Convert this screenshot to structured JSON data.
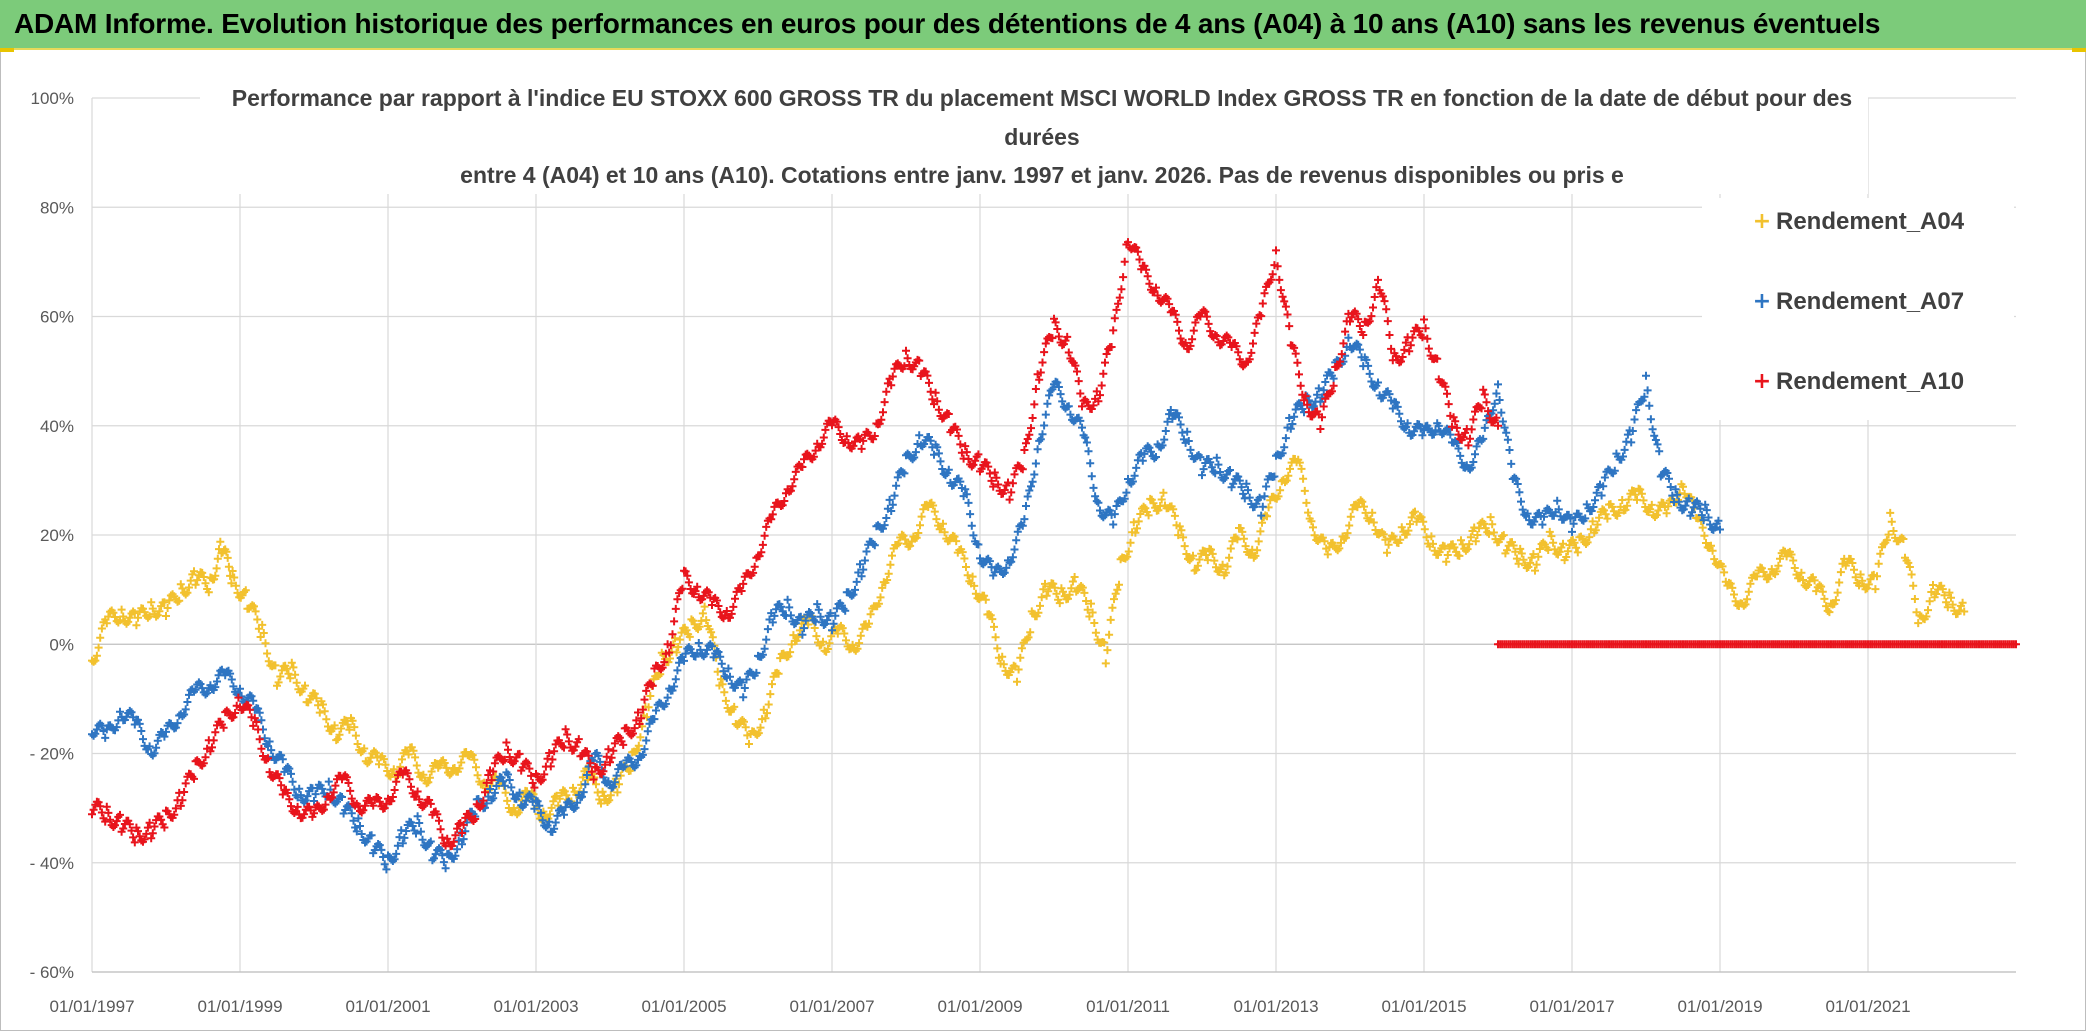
{
  "header": {
    "title": "ADAM Informe. Evolution historique des performances en euros pour des détentions de 4 ans (A04) à 10 ans (A10) sans les revenus éventuels"
  },
  "chart_data": {
    "type": "scatter",
    "title_lines": [
      "Performance par rapport à l'indice EU STOXX 600 GROSS TR  du placement MSCI WORLD Index GROSS TR en fonction de la date de début pour des",
      "durées",
      "entre 4 (A04) et 10 ans (A10). Cotations entre janv. 1997 et janv. 2026. Pas de revenus disponibles ou pris e"
    ],
    "x_axis": {
      "range": [
        1997.0,
        2023.0
      ],
      "ticks": [
        1997,
        1999,
        2001,
        2003,
        2005,
        2007,
        2009,
        2011,
        2013,
        2015,
        2017,
        2019,
        2021
      ],
      "tick_labels": [
        "01/01/1997",
        "01/01/1999",
        "01/01/2001",
        "01/01/2003",
        "01/01/2005",
        "01/01/2007",
        "01/01/2009",
        "01/01/2011",
        "01/01/2013",
        "01/01/2015",
        "01/01/2017",
        "01/01/2019",
        "01/01/2021"
      ]
    },
    "y_axis": {
      "range": [
        -60,
        100
      ],
      "ticks": [
        -60,
        -40,
        -20,
        0,
        20,
        40,
        60,
        80,
        100
      ],
      "tick_labels": [
        "- 60%",
        "- 40%",
        "- 20%",
        "0%",
        "20%",
        "40%",
        "60%",
        "80%",
        "100%"
      ]
    },
    "grid": true,
    "legend_position": "right",
    "series": [
      {
        "name": "Rendement_A04",
        "color": "#f2c12e",
        "x": [
          1997.0,
          1997.2,
          1997.4,
          1997.6,
          1997.8,
          1998.0,
          1998.2,
          1998.4,
          1998.6,
          1998.75,
          1998.9,
          1999.1,
          1999.3,
          1999.5,
          1999.7,
          1999.9,
          2000.1,
          2000.3,
          2000.5,
          2000.7,
          2000.9,
          2001.1,
          2001.3,
          2001.5,
          2001.7,
          2001.9,
          2002.1,
          2002.3,
          2002.5,
          2002.7,
          2002.9,
          2003.1,
          2003.3,
          2003.5,
          2003.7,
          2003.9,
          2004.1,
          2004.3,
          2004.5,
          2004.7,
          2004.9,
          2005.1,
          2005.3,
          2005.5,
          2005.7,
          2005.9,
          2006.1,
          2006.3,
          2006.5,
          2006.7,
          2006.9,
          2007.1,
          2007.3,
          2007.5,
          2007.7,
          2007.9,
          2008.1,
          2008.3,
          2008.5,
          2008.7,
          2008.9,
          2009.1,
          2009.3,
          2009.5,
          2009.7,
          2009.9,
          2010.1,
          2010.3,
          2010.5,
          2010.7,
          2010.9,
          2011.1,
          2011.3,
          2011.5,
          2011.7,
          2011.9,
          2012.1,
          2012.3,
          2012.5,
          2012.7,
          2012.9,
          2013.1,
          2013.3,
          2013.5,
          2013.7,
          2013.9,
          2014.1,
          2014.3,
          2014.5,
          2014.7,
          2014.9,
          2015.1,
          2015.3,
          2015.5,
          2015.7,
          2015.9,
          2016.1,
          2016.3,
          2016.5,
          2016.7,
          2016.9,
          2017.1,
          2017.3,
          2017.5,
          2017.7,
          2017.9,
          2018.1,
          2018.3,
          2018.5,
          2018.7,
          2018.9,
          2019.1,
          2019.3,
          2019.5,
          2019.7,
          2019.9,
          2020.1,
          2020.3,
          2020.5,
          2020.7,
          2020.9,
          2021.1,
          2021.3,
          2021.5,
          2021.7,
          2021.9,
          2022.1,
          2022.3
        ],
        "y": [
          -3,
          4,
          6,
          4,
          7,
          6,
          10,
          12,
          11,
          18,
          12,
          8,
          2,
          -6,
          -5,
          -9,
          -12,
          -16,
          -15,
          -20,
          -22,
          -23,
          -20,
          -24,
          -23,
          -22,
          -21,
          -25,
          -26,
          -30,
          -28,
          -31,
          -29,
          -27,
          -24,
          -28,
          -26,
          -21,
          -12,
          -3,
          0,
          3,
          6,
          -8,
          -13,
          -18,
          -12,
          -4,
          2,
          4,
          0,
          2,
          0,
          3,
          12,
          18,
          20,
          25,
          22,
          17,
          12,
          6,
          -3,
          -6,
          5,
          10,
          9,
          11,
          6,
          -2,
          14,
          22,
          25,
          27,
          20,
          15,
          16,
          14,
          20,
          17,
          24,
          31,
          33,
          22,
          16,
          20,
          25,
          24,
          17,
          21,
          23,
          19,
          16,
          18,
          20,
          22,
          18,
          16,
          15,
          19,
          17,
          18,
          22,
          24,
          26,
          27,
          25,
          24,
          30,
          22,
          18,
          10,
          8,
          12,
          14,
          16,
          13,
          10,
          7,
          15,
          12,
          11,
          23,
          17,
          4,
          10,
          8,
          6
        ]
      },
      {
        "name": "Rendement_A07",
        "color": "#2e75c2",
        "x": [
          1997.0,
          1997.2,
          1997.4,
          1997.6,
          1997.8,
          1998.0,
          1998.2,
          1998.4,
          1998.6,
          1998.8,
          1999.0,
          1999.2,
          1999.4,
          1999.6,
          1999.8,
          2000.0,
          2000.2,
          2000.4,
          2000.6,
          2000.8,
          2001.0,
          2001.2,
          2001.4,
          2001.6,
          2001.8,
          2002.0,
          2002.2,
          2002.4,
          2002.6,
          2002.8,
          2003.0,
          2003.2,
          2003.4,
          2003.6,
          2003.8,
          2004.0,
          2004.2,
          2004.4,
          2004.6,
          2004.8,
          2005.0,
          2005.2,
          2005.4,
          2005.6,
          2005.8,
          2006.0,
          2006.2,
          2006.4,
          2006.6,
          2006.8,
          2007.0,
          2007.2,
          2007.4,
          2007.6,
          2007.8,
          2008.0,
          2008.2,
          2008.4,
          2008.6,
          2008.8,
          2009.0,
          2009.2,
          2009.4,
          2009.6,
          2009.8,
          2010.0,
          2010.2,
          2010.4,
          2010.6,
          2010.8,
          2011.0,
          2011.2,
          2011.4,
          2011.6,
          2011.8,
          2012.0,
          2012.2,
          2012.4,
          2012.6,
          2012.8,
          2013.0,
          2013.2,
          2013.4,
          2013.6,
          2013.8,
          2014.0,
          2014.2,
          2014.4,
          2014.6,
          2014.8,
          2015.0,
          2015.2,
          2015.4,
          2015.6,
          2015.8,
          2016.0,
          2016.2,
          2016.4,
          2016.6,
          2016.8,
          2017.0,
          2017.2,
          2017.4,
          2017.6,
          2017.8,
          2018.0,
          2018.2,
          2018.4,
          2018.6,
          2018.8,
          2019.0
        ],
        "y": [
          -15,
          -17,
          -12,
          -15,
          -19,
          -17,
          -12,
          -9,
          -7,
          -6,
          -8,
          -12,
          -18,
          -23,
          -27,
          -28,
          -26,
          -30,
          -33,
          -37,
          -40,
          -35,
          -33,
          -38,
          -40,
          -35,
          -30,
          -27,
          -25,
          -28,
          -30,
          -33,
          -31,
          -27,
          -21,
          -25,
          -23,
          -20,
          -14,
          -8,
          -3,
          0,
          -2,
          -5,
          -9,
          -3,
          5,
          7,
          3,
          6,
          4,
          8,
          14,
          20,
          26,
          33,
          38,
          35,
          31,
          27,
          17,
          12,
          16,
          22,
          38,
          47,
          44,
          38,
          26,
          22,
          30,
          34,
          36,
          42,
          38,
          32,
          33,
          30,
          28,
          25,
          33,
          41,
          44,
          46,
          50,
          56,
          51,
          47,
          43,
          40,
          38,
          41,
          36,
          33,
          37,
          48,
          30,
          24,
          22,
          26,
          21,
          25,
          28,
          34,
          38,
          48,
          32,
          27,
          25,
          24,
          21
        ]
      },
      {
        "name": "Rendement_A10",
        "color": "#e8141c",
        "x": [
          1997.0,
          1997.2,
          1997.4,
          1997.6,
          1997.8,
          1998.0,
          1998.2,
          1998.4,
          1998.6,
          1998.8,
          1999.0,
          1999.2,
          1999.4,
          1999.6,
          1999.8,
          2000.0,
          2000.2,
          2000.4,
          2000.6,
          2000.8,
          2001.0,
          2001.2,
          2001.4,
          2001.6,
          2001.8,
          2002.0,
          2002.2,
          2002.4,
          2002.6,
          2002.8,
          2003.0,
          2003.2,
          2003.4,
          2003.6,
          2003.8,
          2004.0,
          2004.2,
          2004.4,
          2004.6,
          2004.8,
          2005.0,
          2005.2,
          2005.4,
          2005.6,
          2005.8,
          2006.0,
          2006.2,
          2006.4,
          2006.6,
          2006.8,
          2007.0,
          2007.2,
          2007.4,
          2007.6,
          2007.8,
          2008.0,
          2008.2,
          2008.4,
          2008.6,
          2008.8,
          2009.0,
          2009.2,
          2009.4,
          2009.6,
          2009.8,
          2010.0,
          2010.2,
          2010.4,
          2010.6,
          2010.8,
          2011.0,
          2011.2,
          2011.4,
          2011.6,
          2011.8,
          2012.0,
          2012.2,
          2012.4,
          2012.6,
          2012.8,
          2013.0,
          2013.2,
          2013.4,
          2013.6,
          2013.8,
          2014.0,
          2014.2,
          2014.4,
          2014.6,
          2014.8,
          2015.0,
          2015.2,
          2015.4,
          2015.6,
          2015.8,
          2016.0
        ],
        "y": [
          -30,
          -31,
          -33,
          -35,
          -34,
          -32,
          -28,
          -23,
          -18,
          -14,
          -10,
          -15,
          -22,
          -28,
          -30,
          -32,
          -27,
          -25,
          -29,
          -30,
          -28,
          -24,
          -27,
          -31,
          -36,
          -34,
          -30,
          -24,
          -19,
          -22,
          -25,
          -21,
          -17,
          -19,
          -24,
          -20,
          -17,
          -13,
          -6,
          0,
          12,
          10,
          7,
          6,
          10,
          17,
          23,
          29,
          32,
          37,
          40,
          38,
          36,
          40,
          48,
          53,
          50,
          45,
          40,
          35,
          33,
          30,
          28,
          34,
          50,
          58,
          55,
          43,
          46,
          56,
          75,
          68,
          65,
          60,
          55,
          60,
          57,
          54,
          52,
          60,
          72,
          55,
          45,
          40,
          50,
          60,
          58,
          66,
          52,
          55,
          58,
          50,
          40,
          38,
          45,
          40
        ]
      },
      {
        "name": "Rendement_A10",
        "color": "#e8141c",
        "x": [
          2016.0,
          2016.5,
          2017.0,
          2017.5,
          2018.0,
          2018.5,
          2019.0,
          2019.5,
          2020.0,
          2020.5,
          2021.0,
          2021.5,
          2022.0,
          2022.5,
          2023.0
        ],
        "y": [
          0,
          0,
          0,
          0,
          0,
          0,
          0,
          0,
          0,
          0,
          0,
          0,
          0,
          0,
          0
        ]
      }
    ]
  }
}
